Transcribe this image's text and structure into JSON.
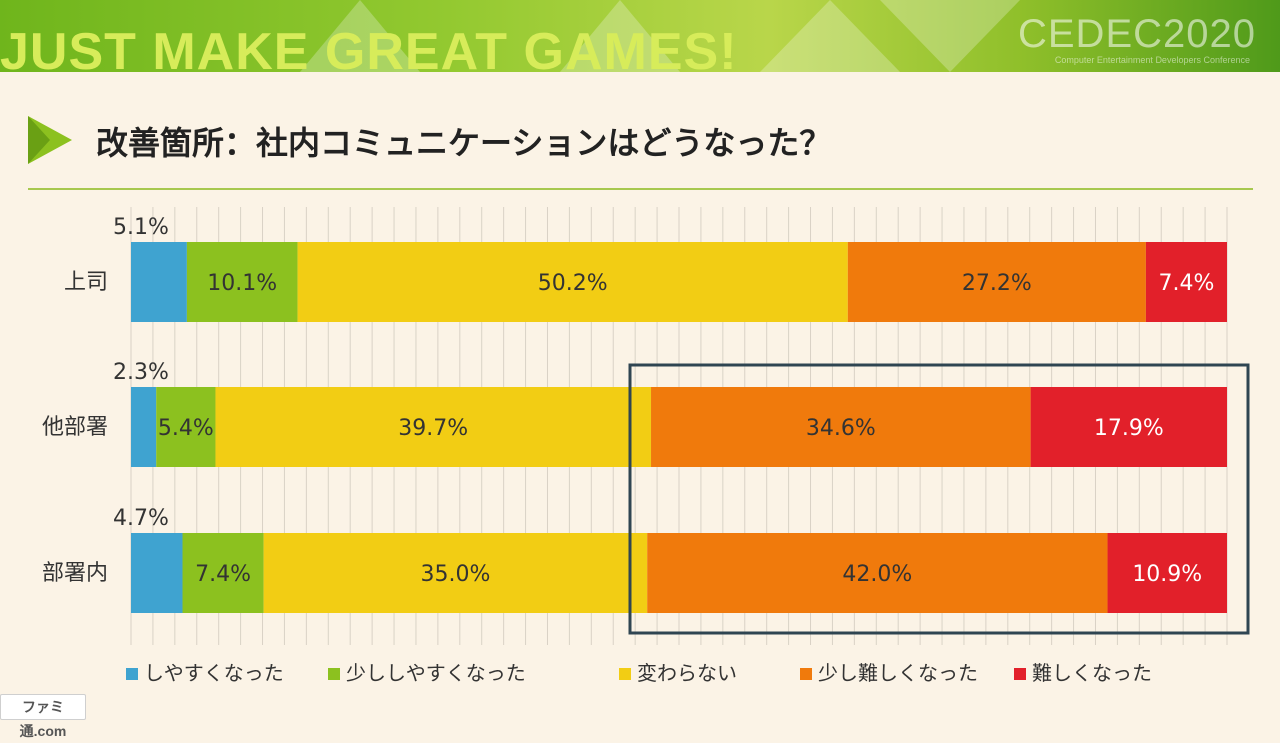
{
  "banner": {
    "slogan": "JUST MAKE GREAT GAMES!",
    "logo": "CEDEC2020",
    "sub": "Computer Entertainment Developers Conference"
  },
  "slide": {
    "title": "改善箇所：社内コミュニケーションはどうなった？"
  },
  "footer": {
    "logo": "ファミ通.com"
  },
  "colors": {
    "series": [
      "#3fa3d0",
      "#8cc11f",
      "#f2cd14",
      "#f07a0c",
      "#e2202a"
    ],
    "highlight_box": "#2f4552",
    "rule": "#a7c84f"
  },
  "chart_data": {
    "type": "bar",
    "orientation": "horizontal",
    "stacked": true,
    "percent_scale": [
      0,
      100
    ],
    "grid": true,
    "legend_position": "bottom",
    "categories": [
      "上司",
      "他部署",
      "部署内"
    ],
    "series": [
      {
        "name": "しやすくなった",
        "values": [
          5.1,
          2.3,
          4.7
        ],
        "labels": [
          "5.1%",
          "2.3%",
          "4.7%"
        ]
      },
      {
        "name": "少ししやすくなった",
        "values": [
          10.1,
          5.4,
          7.4
        ],
        "labels": [
          "10.1%",
          "5.4%",
          "7.4%"
        ]
      },
      {
        "name": "変わらない",
        "values": [
          50.2,
          39.7,
          35.0
        ],
        "labels": [
          "50.2%",
          "39.7%",
          "35.0%"
        ]
      },
      {
        "name": "少し難しくなった",
        "values": [
          27.2,
          34.6,
          42.0
        ],
        "labels": [
          "27.2%",
          "34.6%",
          "42.0%"
        ]
      },
      {
        "name": "難しくなった",
        "values": [
          7.4,
          17.9,
          10.9
        ],
        "labels": [
          "7.4%",
          "17.9%",
          "10.9%"
        ]
      }
    ],
    "annotation": "highlight box around 少し難しくなった and 難しくなった for 他部署 and 部署内"
  }
}
